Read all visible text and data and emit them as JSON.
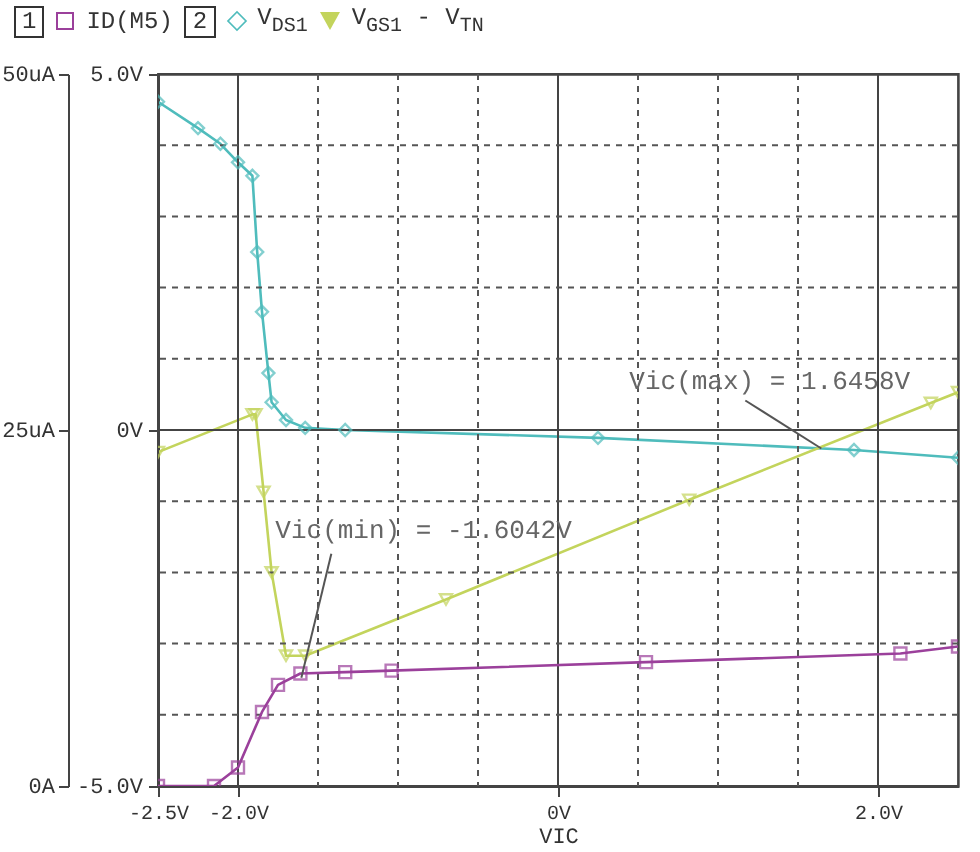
{
  "chart_data": {
    "type": "line",
    "xlabel": "VIC",
    "xlim": [
      -2.5,
      2.5
    ],
    "xticks": [
      {
        "value": -2.5,
        "label": "-2.5V"
      },
      {
        "value": -2,
        "label": "-2.0V"
      },
      {
        "value": -1.5,
        "label": null
      },
      {
        "value": -1,
        "label": null
      },
      {
        "value": -0.5,
        "label": null
      },
      {
        "value": 0,
        "label": "0V"
      },
      {
        "value": 0.5,
        "label": null
      },
      {
        "value": 1,
        "label": null
      },
      {
        "value": 1.5,
        "label": null
      },
      {
        "value": 2,
        "label": "2.0V"
      }
    ],
    "ylim": [
      0,
      50
    ],
    "yticks": [
      {
        "value": 0,
        "label": "0A"
      },
      {
        "value": 25,
        "label": "25uA"
      },
      {
        "value": 50,
        "label": "50uA"
      }
    ],
    "y2lim": [
      -5,
      5
    ],
    "y2ticks": [
      {
        "value": -5,
        "label": "-5.0V"
      },
      {
        "value": -4,
        "label": null
      },
      {
        "value": -3,
        "label": null
      },
      {
        "value": -2,
        "label": null
      },
      {
        "value": -1,
        "label": null
      },
      {
        "value": 0,
        "label": "0V"
      },
      {
        "value": 1,
        "label": null
      },
      {
        "value": 2,
        "label": null
      },
      {
        "value": 3,
        "label": null
      },
      {
        "value": 4,
        "label": null
      },
      {
        "value": 5,
        "label": "5.0V"
      }
    ],
    "grid": true,
    "legend": "top left",
    "series": [
      {
        "name": "ID(M5)",
        "color": "#9b409b",
        "marker": "square",
        "x": [
          -2.5,
          -2.15,
          -2.0,
          -1.85,
          -1.75,
          -1.61,
          -1.33,
          -1.04,
          0.55,
          2.14,
          2.5
        ],
        "values": [
          0,
          0,
          1.3,
          5.2,
          7.1,
          7.9,
          8.0,
          8.1,
          8.7,
          9.3,
          9.8
        ]
      },
      {
        "name": "V$_{DS1}$",
        "color": "#4fbcbc",
        "marker": "diamond",
        "axis": "y2",
        "x": [
          -2.5,
          -2.25,
          -2.11,
          -2.0,
          -1.91,
          -1.88,
          -1.85,
          -1.81,
          -1.79,
          -1.7,
          -1.58,
          -1.33,
          0.25,
          1.85,
          2.5
        ],
        "values": [
          4.61,
          4.24,
          4.02,
          3.76,
          3.57,
          2.5,
          1.66,
          0.8,
          0.39,
          0.14,
          0.03,
          0,
          -0.11,
          -0.28,
          -0.39
        ]
      },
      {
        "name": "V$_{GS1}$ - V$_{TN}$",
        "color": "#c3d45c",
        "marker": "triangle",
        "axis": "y2",
        "x": [
          -2.5,
          -1.91,
          -1.89,
          -1.84,
          -1.79,
          -1.7,
          -1.58,
          -0.7,
          0.82,
          2.33,
          2.5
        ],
        "values": [
          -0.31,
          0.22,
          0.22,
          -0.87,
          -2.0,
          -3.17,
          -3.17,
          -2.38,
          -0.98,
          0.38,
          0.53
        ]
      }
    ],
    "annotations": [
      {
        "text": "Vic(min) = -1.6042V",
        "x": -1.6042,
        "y": 7.6
      },
      {
        "text": "Vic(max) = 1.6458V",
        "x": 1.6458,
        "y": 23.7
      },
      "1",
      "2"
    ]
  }
}
